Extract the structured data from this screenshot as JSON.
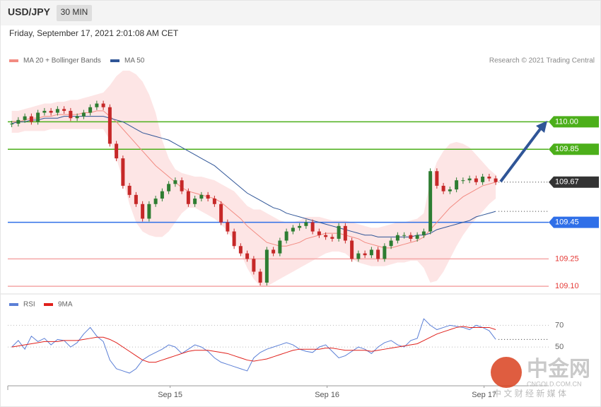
{
  "header": {
    "symbol": "USD/JPY",
    "interval": "30 MIN",
    "timestamp": "Friday, September 17, 2021 2:01:08 AM CET",
    "credit": "Research © 2021 Trading Central"
  },
  "watermark": {
    "logo": "中金网",
    "site": "CNGOLD.COM.CN",
    "slogan": "中 文 财 经 新 媒 体"
  },
  "chart_data": [
    {
      "type": "candlestick",
      "legend": [
        "MA 20 + Bollinger Bands",
        "MA 50"
      ],
      "legend_colors": [
        "#f28b82",
        "#2f5597"
      ],
      "categories": [
        null,
        null,
        null,
        null,
        null,
        null,
        null,
        null,
        null,
        null,
        null,
        null,
        null,
        null,
        null,
        null,
        null,
        null,
        null,
        null,
        null,
        null,
        null,
        null,
        "Sep 15",
        null,
        null,
        null,
        null,
        null,
        null,
        null,
        null,
        null,
        null,
        null,
        null,
        null,
        null,
        null,
        null,
        null,
        null,
        null,
        null,
        null,
        null,
        null,
        "Sep 16",
        null,
        null,
        null,
        null,
        null,
        null,
        null,
        null,
        null,
        null,
        null,
        null,
        null,
        null,
        null,
        null,
        null,
        null,
        null,
        null,
        null,
        null,
        null,
        "Sep 17",
        null,
        null
      ],
      "values": [
        109.99,
        110.01,
        110.03,
        110.0,
        110.05,
        110.06,
        110.05,
        110.07,
        110.06,
        110.02,
        110.03,
        110.05,
        110.08,
        110.1,
        110.08,
        109.88,
        109.8,
        109.65,
        109.6,
        109.55,
        109.47,
        109.55,
        109.58,
        109.62,
        109.66,
        109.68,
        109.62,
        109.55,
        109.58,
        109.6,
        109.58,
        109.55,
        109.45,
        109.4,
        109.32,
        109.28,
        109.25,
        109.18,
        109.12,
        109.3,
        109.28,
        109.35,
        109.4,
        109.42,
        109.43,
        109.45,
        109.4,
        109.38,
        109.37,
        109.36,
        109.43,
        109.35,
        109.25,
        109.28,
        109.27,
        109.3,
        109.25,
        109.32,
        109.35,
        109.38,
        109.38,
        109.36,
        109.38,
        109.4,
        109.73,
        109.65,
        109.62,
        109.63,
        109.68,
        109.68,
        109.69,
        109.67,
        109.7,
        109.69,
        109.67
      ],
      "up_color": "#2e7d32",
      "down_color": "#c62828",
      "ma20": [
        110.0,
        110.0,
        110.01,
        110.02,
        110.02,
        110.03,
        110.03,
        110.04,
        110.04,
        110.04,
        110.04,
        110.05,
        110.05,
        110.06,
        110.06,
        110.03,
        110.0,
        109.96,
        109.92,
        109.88,
        109.84,
        109.8,
        109.76,
        109.73,
        109.7,
        109.67,
        109.64,
        109.62,
        109.61,
        109.6,
        109.59,
        109.58,
        109.56,
        109.53,
        109.5,
        109.47,
        109.43,
        109.4,
        109.37,
        109.34,
        109.33,
        109.32,
        109.32,
        109.33,
        109.34,
        109.36,
        109.37,
        109.38,
        109.39,
        109.39,
        109.39,
        109.38,
        109.37,
        109.36,
        109.34,
        109.33,
        109.32,
        109.31,
        109.31,
        109.32,
        109.33,
        109.34,
        109.35,
        109.37,
        109.41,
        109.45,
        109.49,
        109.53,
        109.56,
        109.59,
        109.61,
        109.63,
        109.65,
        109.66,
        109.67
      ],
      "band_upper": [
        110.06,
        110.06,
        110.07,
        110.08,
        110.09,
        110.1,
        110.1,
        110.11,
        110.11,
        110.12,
        110.12,
        110.13,
        110.14,
        110.15,
        110.16,
        110.2,
        110.25,
        110.28,
        110.28,
        110.26,
        110.22,
        110.15,
        110.05,
        109.9,
        109.8,
        109.74,
        109.72,
        109.71,
        109.7,
        109.7,
        109.69,
        109.68,
        109.66,
        109.64,
        109.62,
        109.58,
        109.54,
        109.52,
        109.52,
        109.5,
        109.48,
        109.46,
        109.45,
        109.45,
        109.46,
        109.48,
        109.48,
        109.48,
        109.47,
        109.46,
        109.46,
        109.46,
        109.45,
        109.44,
        109.43,
        109.42,
        109.42,
        109.43,
        109.44,
        109.45,
        109.45,
        109.46,
        109.47,
        109.5,
        109.68,
        109.78,
        109.84,
        109.88,
        109.89,
        109.88,
        109.86,
        109.82,
        109.78,
        109.74,
        109.71
      ],
      "band_lower": [
        109.94,
        109.94,
        109.95,
        109.95,
        109.95,
        109.95,
        109.96,
        109.96,
        109.96,
        109.96,
        109.96,
        109.96,
        109.96,
        109.96,
        109.96,
        109.9,
        109.8,
        109.68,
        109.55,
        109.45,
        109.4,
        109.38,
        109.37,
        109.37,
        109.4,
        109.45,
        109.5,
        109.53,
        109.53,
        109.51,
        109.49,
        109.47,
        109.44,
        109.4,
        109.35,
        109.28,
        109.2,
        109.14,
        109.1,
        109.1,
        109.12,
        109.14,
        109.16,
        109.18,
        109.2,
        109.22,
        109.24,
        109.26,
        109.28,
        109.29,
        109.29,
        109.28,
        109.25,
        109.23,
        109.22,
        109.21,
        109.21,
        109.21,
        109.22,
        109.23,
        109.23,
        109.24,
        109.24,
        109.2,
        109.12,
        109.13,
        109.18,
        109.25,
        109.32,
        109.38,
        109.43,
        109.47,
        109.51,
        109.55,
        109.58
      ],
      "ma50": [
        109.99,
        110.0,
        110.0,
        110.01,
        110.01,
        110.02,
        110.02,
        110.02,
        110.03,
        110.03,
        110.03,
        110.03,
        110.03,
        110.03,
        110.03,
        110.02,
        110.01,
        110.0,
        109.98,
        109.96,
        109.94,
        109.93,
        109.92,
        109.91,
        109.9,
        109.88,
        109.86,
        109.84,
        109.82,
        109.8,
        109.78,
        109.76,
        109.73,
        109.7,
        109.67,
        109.64,
        109.61,
        109.59,
        109.57,
        109.55,
        109.53,
        109.52,
        109.5,
        109.49,
        109.48,
        109.47,
        109.46,
        109.45,
        109.44,
        109.43,
        109.42,
        109.41,
        109.4,
        109.39,
        109.38,
        109.38,
        109.37,
        109.37,
        109.37,
        109.37,
        109.37,
        109.37,
        109.38,
        109.38,
        109.39,
        109.41,
        109.42,
        109.43,
        109.44,
        109.45,
        109.46,
        109.48,
        109.49,
        109.5,
        109.51
      ],
      "ylim": [
        109.06,
        110.28
      ],
      "levels": [
        {
          "value": 110.0,
          "label": "110.00",
          "color": "#4caf1a",
          "boxed": true,
          "dotted": false
        },
        {
          "value": 109.85,
          "label": "109.85",
          "color": "#4caf1a",
          "boxed": true,
          "dotted": false
        },
        {
          "value": 109.67,
          "label": "109.67",
          "color": "#333333",
          "boxed": true,
          "dotted": true
        },
        {
          "value": 109.45,
          "label": "109.45",
          "color": "#2f6fe8",
          "boxed": true,
          "dotted": false
        },
        {
          "value": 109.25,
          "label": "109.25",
          "color": "#e53935",
          "boxed": false,
          "dotted": false
        },
        {
          "value": 109.1,
          "label": "109.10",
          "color": "#e53935",
          "boxed": false,
          "dotted": false
        }
      ]
    },
    {
      "type": "line",
      "legend_corner": "top-left",
      "ylim": [
        13,
        93
      ],
      "yticks": [
        70,
        50
      ],
      "series": [
        {
          "name": "RSI",
          "color": "#5b7fd6",
          "values": [
            50,
            56,
            48,
            60,
            55,
            58,
            52,
            57,
            56,
            50,
            54,
            62,
            68,
            60,
            55,
            38,
            30,
            28,
            26,
            30,
            38,
            42,
            45,
            48,
            52,
            50,
            44,
            48,
            52,
            50,
            46,
            40,
            36,
            34,
            32,
            30,
            28,
            40,
            45,
            48,
            50,
            52,
            54,
            52,
            48,
            46,
            45,
            50,
            52,
            46,
            40,
            42,
            46,
            50,
            48,
            44,
            50,
            54,
            56,
            52,
            50,
            56,
            58,
            76,
            70,
            66,
            68,
            70,
            69,
            68,
            66,
            70,
            68,
            65,
            57
          ]
        },
        {
          "name": "9MA",
          "color": "#e0201b",
          "values": [
            50,
            51,
            52,
            53,
            54,
            55,
            55,
            55,
            56,
            56,
            56,
            57,
            58,
            59,
            59,
            57,
            54,
            50,
            46,
            42,
            38,
            36,
            36,
            38,
            40,
            42,
            44,
            46,
            47,
            47,
            47,
            46,
            45,
            44,
            42,
            40,
            38,
            37,
            38,
            39,
            41,
            43,
            45,
            47,
            48,
            48,
            48,
            48,
            49,
            49,
            48,
            47,
            47,
            47,
            47,
            46,
            47,
            48,
            49,
            50,
            51,
            52,
            53,
            56,
            59,
            62,
            64,
            66,
            68,
            69,
            68,
            68,
            68,
            68,
            66
          ]
        }
      ]
    }
  ]
}
